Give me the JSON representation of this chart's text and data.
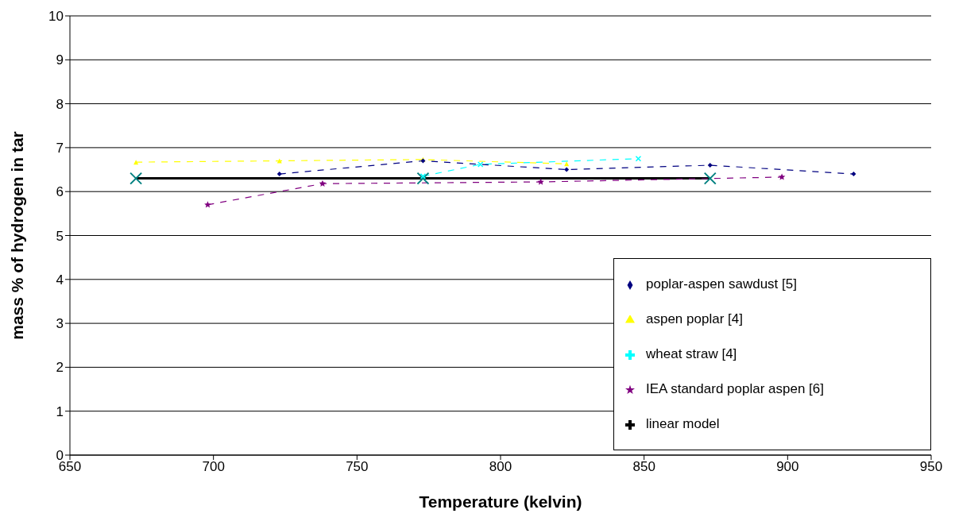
{
  "chart_data": {
    "type": "line",
    "xlabel": "Temperature (kelvin)",
    "ylabel": "mass % of hydrogen in tar",
    "xlim": [
      650,
      950
    ],
    "xticks": [
      650,
      700,
      750,
      800,
      850,
      900,
      950
    ],
    "ylim": [
      0,
      10
    ],
    "yticks": [
      0,
      1,
      2,
      3,
      4,
      5,
      6,
      7,
      8,
      9,
      10
    ],
    "grid": "y",
    "legend": "bottom right",
    "series": [
      {
        "name": "poplar-aspen sawdust [5]",
        "color": "#000080",
        "marker": "diamond",
        "line_style": "dashed",
        "x": [
          723,
          773,
          823,
          873,
          923
        ],
        "values": [
          6.4,
          6.7,
          6.5,
          6.6,
          6.4
        ]
      },
      {
        "name": "aspen poplar [4]",
        "color": "#ffff00",
        "marker": "triangle",
        "line_style": "dashed",
        "x": [
          673,
          723,
          773,
          823
        ],
        "values": [
          6.67,
          6.7,
          6.73,
          6.63
        ]
      },
      {
        "name": "wheat straw [4]",
        "color": "#00ffff",
        "marker": "cross",
        "line_style": "dashed",
        "x": [
          773,
          793,
          848
        ],
        "values": [
          6.35,
          6.62,
          6.75
        ]
      },
      {
        "name": "IEA standard poplar aspen [6]",
        "color": "#800080",
        "marker": "star",
        "line_style": "dashed",
        "x": [
          698,
          738,
          814,
          898
        ],
        "values": [
          5.7,
          6.18,
          6.22,
          6.33
        ]
      },
      {
        "name": "linear model",
        "color": "#000000",
        "marker": "cross",
        "line_style": "solid",
        "x": [
          673,
          773,
          873
        ],
        "values": [
          6.3,
          6.3,
          6.3
        ]
      }
    ]
  }
}
